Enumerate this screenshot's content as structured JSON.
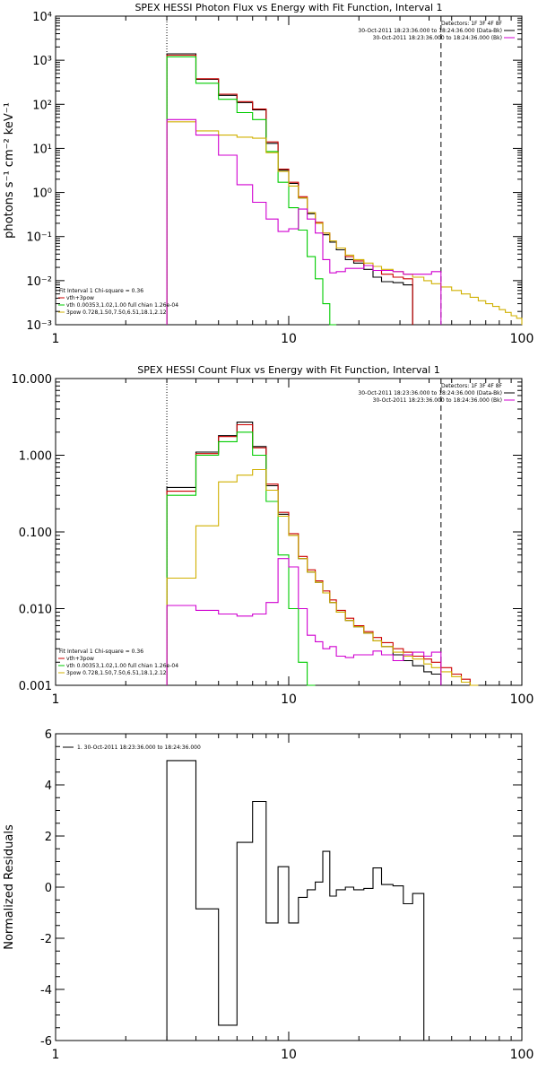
{
  "chart_data": [
    {
      "type": "line",
      "title": "SPEX HESSI Photon Flux vs Energy with Fit Function, Interval 1",
      "xlabel": "",
      "ylabel": "photons s⁻¹ cm⁻² keV⁻¹",
      "xscale": "log",
      "yscale": "log",
      "xlim": [
        1,
        100
      ],
      "ylim": [
        0.001,
        10000
      ],
      "xticks": [
        {
          "v": 1,
          "label": "1"
        },
        {
          "v": 10,
          "label": "10"
        },
        {
          "v": 100,
          "label": "100"
        }
      ],
      "yticks": [
        {
          "v": 0.001,
          "label": "10⁻³"
        },
        {
          "v": 0.01,
          "label": "10⁻²"
        },
        {
          "v": 0.1,
          "label": "10⁻¹"
        },
        {
          "v": 1,
          "label": "10⁰"
        },
        {
          "v": 10,
          "label": "10¹"
        },
        {
          "v": 100,
          "label": "10²"
        },
        {
          "v": 1000,
          "label": "10³"
        },
        {
          "v": 10000,
          "label": "10⁴"
        }
      ],
      "vlines": [
        {
          "x": 3,
          "style": "dotted"
        },
        {
          "x": 45,
          "style": "dashed"
        }
      ],
      "legend_topright": [
        {
          "text": "Detectors: 1F 3F 4F 8F",
          "color": ""
        },
        {
          "text": "30-Oct-2011 18:23:36.000 to 18:24:36.000 (Data-Bk)",
          "color": "#000000"
        },
        {
          "text": "30-Oct-2011 18:23:36.000 to 18:24:36.000 (Bk)",
          "color": "#d000d0"
        }
      ],
      "legend_bottomleft": [
        {
          "text": "Fit Interval 1    Chi-square = 0.36",
          "color": ""
        },
        {
          "text": "vth+3pow",
          "color": "#cc0000"
        },
        {
          "text": "vth 0.00353,1.02,1.00  full chian 1.26e-04",
          "color": "#00cc00"
        },
        {
          "text": "3pow 0.728,1.50,7.50,6.51,18.1,2.12",
          "color": "#d0b000"
        }
      ],
      "edges": [
        3,
        4,
        5,
        6,
        7,
        8,
        9,
        10,
        11,
        12,
        13,
        14,
        15,
        16,
        17.5,
        19,
        21,
        23,
        25,
        28,
        31,
        34,
        38,
        41,
        45,
        50,
        55,
        60,
        65,
        70,
        75,
        80,
        85,
        90,
        95,
        100
      ],
      "series": [
        {
          "color": "#000000",
          "values": [
            1400,
            370,
            160,
            110,
            75,
            13,
            3.2,
            1.6,
            0.75,
            0.33,
            0.2,
            0.11,
            0.075,
            0.05,
            0.03,
            0.025,
            0.018,
            0.012,
            0.0095,
            0.009,
            0.008
          ]
        },
        {
          "color": "#cc0000",
          "values": [
            1300,
            380,
            170,
            115,
            78,
            14,
            3.4,
            1.7,
            0.8,
            0.35,
            0.21,
            0.12,
            0.08,
            0.055,
            0.035,
            0.028,
            0.022,
            0.017,
            0.014,
            0.012,
            0.011
          ]
        },
        {
          "color": "#00cc00",
          "values": [
            1200,
            300,
            130,
            65,
            45,
            8.5,
            1.7,
            0.45,
            0.14,
            0.035,
            0.011,
            0.003,
            0.0007
          ]
        },
        {
          "color": "#d0b000",
          "values": [
            40,
            25,
            20,
            18,
            17,
            8,
            3.0,
            1.4,
            0.75,
            0.35,
            0.2,
            0.12,
            0.08,
            0.055,
            0.038,
            0.03,
            0.025,
            0.021,
            0.018,
            0.016,
            0.014,
            0.012,
            0.01,
            0.0085,
            0.0072,
            0.006,
            0.005,
            0.0042,
            0.0035,
            0.003,
            0.0026,
            0.0022,
            0.0019,
            0.0016,
            0.0014
          ]
        },
        {
          "color": "#d000d0",
          "values": [
            45,
            20,
            7,
            1.5,
            0.6,
            0.25,
            0.13,
            0.15,
            0.42,
            0.25,
            0.12,
            0.03,
            0.015,
            0.016,
            0.019,
            0.019,
            0.022,
            0.017,
            0.017,
            0.016,
            0.014,
            0.014,
            0.014,
            0.016
          ]
        }
      ]
    },
    {
      "type": "line",
      "title": "SPEX HESSI Count Flux vs Energy with Fit Function, Interval 1",
      "xlabel": "",
      "ylabel": "",
      "xscale": "log",
      "yscale": "log",
      "xlim": [
        1,
        100
      ],
      "ylim": [
        0.001,
        10
      ],
      "xticks": [
        {
          "v": 1,
          "label": "1"
        },
        {
          "v": 10,
          "label": "10"
        },
        {
          "v": 100,
          "label": "100"
        }
      ],
      "yticks": [
        {
          "v": 0.001,
          "label": "0.001"
        },
        {
          "v": 0.01,
          "label": "0.010"
        },
        {
          "v": 0.1,
          "label": "0.100"
        },
        {
          "v": 1,
          "label": "1.000"
        },
        {
          "v": 10,
          "label": "10.000"
        }
      ],
      "vlines": [
        {
          "x": 3,
          "style": "dotted"
        },
        {
          "x": 45,
          "style": "dashed"
        }
      ],
      "legend_topright": [
        {
          "text": "Detectors: 1F 3F 4F 8F",
          "color": ""
        },
        {
          "text": "30-Oct-2011 18:23:36.000 to 18:24:36.000 (Data-Bk)",
          "color": "#000000"
        },
        {
          "text": "30-Oct-2011 18:23:36.000 to 18:24:36.000 (Bk)",
          "color": "#d000d0"
        }
      ],
      "legend_bottomleft": [
        {
          "text": "Fit Interval 1    Chi-square = 0.36",
          "color": ""
        },
        {
          "text": "vth+3pow",
          "color": "#cc0000"
        },
        {
          "text": "vth 0.00353,1.02,1.00  full chian 1.26e-04",
          "color": "#00cc00"
        },
        {
          "text": "3pow 0.728,1.50,7.50,6.51,18.1,2.12",
          "color": "#d0b000"
        }
      ],
      "edges": [
        3,
        4,
        5,
        6,
        7,
        8,
        9,
        10,
        11,
        12,
        13,
        14,
        15,
        16,
        17.5,
        19,
        21,
        23,
        25,
        28,
        31,
        34,
        38,
        41,
        45,
        50,
        55,
        60,
        65
      ],
      "series": [
        {
          "color": "#000000",
          "values": [
            0.38,
            1.1,
            1.8,
            2.7,
            1.3,
            0.4,
            0.17,
            0.09,
            0.045,
            0.03,
            0.022,
            0.016,
            0.012,
            0.009,
            0.007,
            0.0058,
            0.0048,
            0.0038,
            0.0032,
            0.0025,
            0.0021,
            0.0018,
            0.0015,
            0.0014
          ]
        },
        {
          "color": "#cc0000",
          "values": [
            0.34,
            1.05,
            1.75,
            2.5,
            1.25,
            0.42,
            0.18,
            0.095,
            0.048,
            0.032,
            0.023,
            0.017,
            0.013,
            0.0095,
            0.0075,
            0.006,
            0.005,
            0.0042,
            0.0036,
            0.003,
            0.0027,
            0.0024,
            0.0022,
            0.002,
            0.0017,
            0.0014,
            0.0012,
            0.001
          ]
        },
        {
          "color": "#00cc00",
          "values": [
            0.3,
            1.0,
            1.5,
            2.0,
            1.0,
            0.25,
            0.05,
            0.01,
            0.002,
            0.0009
          ]
        },
        {
          "color": "#d0b000",
          "values": [
            0.025,
            0.12,
            0.45,
            0.55,
            0.65,
            0.35,
            0.16,
            0.09,
            0.045,
            0.03,
            0.022,
            0.016,
            0.012,
            0.009,
            0.007,
            0.0058,
            0.0048,
            0.0038,
            0.0032,
            0.0027,
            0.0024,
            0.0022,
            0.0019,
            0.0017,
            0.0015,
            0.0013,
            0.0011,
            0.0009
          ]
        },
        {
          "color": "#d000d0",
          "values": [
            0.011,
            0.0095,
            0.0085,
            0.008,
            0.0085,
            0.012,
            0.045,
            0.035,
            0.01,
            0.0045,
            0.0037,
            0.003,
            0.0032,
            0.0024,
            0.0023,
            0.0025,
            0.0025,
            0.0028,
            0.0025,
            0.0021,
            0.0025,
            0.0027,
            0.0024,
            0.0027
          ]
        }
      ]
    },
    {
      "type": "line",
      "title": "",
      "xlabel": "",
      "ylabel": "Normalized Residuals",
      "xscale": "log",
      "yscale": "linear",
      "xlim": [
        1,
        100
      ],
      "ylim": [
        -6,
        6
      ],
      "xticks": [
        {
          "v": 1,
          "label": "1"
        },
        {
          "v": 10,
          "label": "10"
        },
        {
          "v": 100,
          "label": "100"
        }
      ],
      "yticks": [
        {
          "v": -6,
          "label": "-6"
        },
        {
          "v": -4,
          "label": "-4"
        },
        {
          "v": -2,
          "label": "-2"
        },
        {
          "v": 0,
          "label": "0"
        },
        {
          "v": 2,
          "label": "2"
        },
        {
          "v": 4,
          "label": "4"
        },
        {
          "v": 6,
          "label": "6"
        }
      ],
      "vlines": [],
      "legend_topleft": [
        {
          "text": "1. 30-Oct-2011 18:23:36.000 to 18:24:36.000",
          "color": "#000000"
        }
      ],
      "edges": [
        3,
        4,
        5,
        6,
        7,
        8,
        9,
        10,
        11,
        12,
        13,
        14,
        15,
        16,
        17.5,
        19,
        21,
        23,
        25,
        28,
        31,
        34,
        38,
        41,
        45
      ],
      "series": [
        {
          "color": "#000000",
          "values": [
            4.95,
            -0.85,
            -5.4,
            1.75,
            3.35,
            -1.4,
            0.8,
            -1.4,
            -0.4,
            -0.1,
            0.2,
            1.4,
            -0.35,
            -0.1,
            0.0,
            -0.1,
            -0.05,
            0.75,
            0.1,
            0.05,
            -0.65,
            -0.25
          ]
        }
      ]
    }
  ]
}
